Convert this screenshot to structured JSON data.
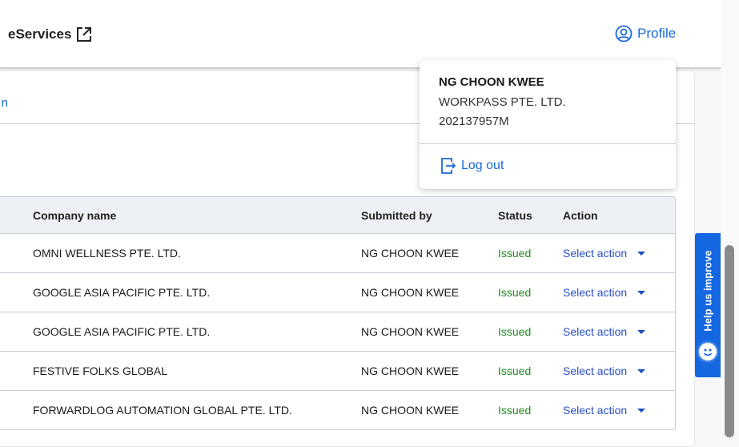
{
  "header": {
    "brand": "eServices",
    "brand_icon": "external-link-icon",
    "profile_label": "Profile",
    "profile_icon": "user-circle-icon"
  },
  "tab": {
    "partial_label": "n"
  },
  "table": {
    "columns": [
      "Company name",
      "Submitted by",
      "Status",
      "Action"
    ],
    "rows": [
      {
        "company": "OMNI WELLNESS PTE. LTD.",
        "submitted_by": "NG CHOON KWEE",
        "status": "Issued",
        "action": "Select action"
      },
      {
        "company": "GOOGLE ASIA PACIFIC PTE. LTD.",
        "submitted_by": "NG CHOON KWEE",
        "status": "Issued",
        "action": "Select action"
      },
      {
        "company": "GOOGLE ASIA PACIFIC PTE. LTD.",
        "submitted_by": "NG CHOON KWEE",
        "status": "Issued",
        "action": "Select action"
      },
      {
        "company": "FESTIVE FOLKS GLOBAL",
        "submitted_by": "NG CHOON KWEE",
        "status": "Issued",
        "action": "Select action"
      },
      {
        "company": "FORWARDLOG AUTOMATION GLOBAL PTE. LTD.",
        "submitted_by": "NG CHOON KWEE",
        "status": "Issued",
        "action": "Select action"
      }
    ]
  },
  "profile_menu": {
    "name": "NG CHOON KWEE",
    "company": "WORKPASS PTE. LTD.",
    "uen": "202137957M",
    "logout_label": "Log out"
  },
  "feedback": {
    "label": "Help us improve"
  },
  "colors": {
    "link": "#1a6ad8",
    "issued": "#1d8a1d",
    "feedback_bg": "#1467e0"
  }
}
